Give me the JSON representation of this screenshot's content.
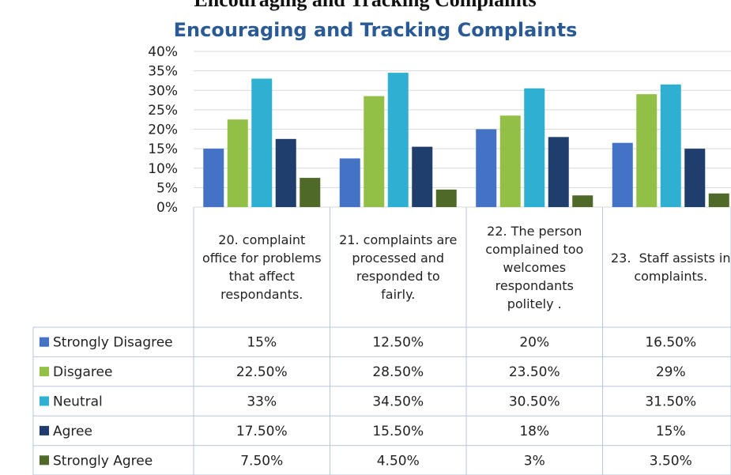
{
  "heading": "Encouraging and Tracking Complaints",
  "chart_data": {
    "type": "bar",
    "title": "Encouraging and Tracking Complaints",
    "categories": [
      "20. complaint office for problems that affect respondants.",
      "21. complaints are processed and responded to fairly.",
      "22. The person complained too welcomes respondants politely .",
      "23.  Staff assists in complaints."
    ],
    "series": [
      {
        "name": "Strongly Disagree",
        "color": "#4472c4",
        "values": [
          15,
          12.5,
          20,
          16.5
        ],
        "value_labels": [
          "15%",
          "12.50%",
          "20%",
          "16.50%"
        ]
      },
      {
        "name": "Disgaree",
        "color": "#92c046",
        "values": [
          22.5,
          28.5,
          23.5,
          29
        ],
        "value_labels": [
          "22.50%",
          "28.50%",
          "23.50%",
          "29%"
        ]
      },
      {
        "name": "Neutral",
        "color": "#2fb0d3",
        "values": [
          33,
          34.5,
          30.5,
          31.5
        ],
        "value_labels": [
          "33%",
          "34.50%",
          "30.50%",
          "31.50%"
        ]
      },
      {
        "name": "Agree",
        "color": "#1f3e6e",
        "values": [
          17.5,
          15.5,
          18,
          15
        ],
        "value_labels": [
          "17.50%",
          "15.50%",
          "18%",
          "15%"
        ]
      },
      {
        "name": "Strongly Agree",
        "color": "#4f6a28",
        "values": [
          7.5,
          4.5,
          3,
          3.5
        ],
        "value_labels": [
          "7.50%",
          "4.50%",
          "3%",
          "3.50%"
        ]
      }
    ],
    "ylim": [
      0,
      40
    ],
    "yticks": [
      {
        "value": 0,
        "label": "0%"
      },
      {
        "value": 5,
        "label": "5%"
      },
      {
        "value": 10,
        "label": "10%"
      },
      {
        "value": 15,
        "label": "15%"
      },
      {
        "value": 20,
        "label": "20%"
      },
      {
        "value": 25,
        "label": "25%"
      },
      {
        "value": 30,
        "label": "30%"
      },
      {
        "value": 35,
        "label": "35%"
      },
      {
        "value": 40,
        "label": "40%"
      }
    ],
    "grid": true
  }
}
